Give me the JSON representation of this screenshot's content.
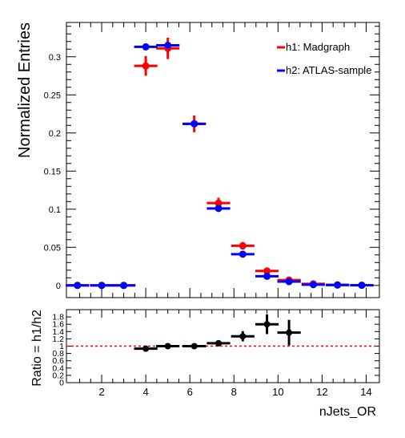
{
  "chart_data": [
    {
      "type": "scatter",
      "panel": "main",
      "ylabel": "Normalized Entries",
      "xlim": [
        0.4,
        14.6
      ],
      "ylim": [
        -0.016,
        0.345
      ],
      "yticks": [
        0,
        0.05,
        0.1,
        0.15,
        0.2,
        0.25,
        0.3
      ],
      "ytick_labels": [
        "0",
        "0.05",
        "0.1",
        "0.15",
        "0.2",
        "0.25",
        "0.3"
      ],
      "legend_position": "top-right",
      "series": [
        {
          "name": "h1: Madgraph",
          "color": "#ff0000",
          "x": [
            0.9,
            2.0,
            3.0,
            4.0,
            5.0,
            6.2,
            7.3,
            8.4,
            9.5,
            10.5,
            11.6,
            12.7,
            13.8
          ],
          "xerr": [
            0.53,
            0.53,
            0.53,
            0.53,
            0.53,
            0.53,
            0.53,
            0.53,
            0.53,
            0.53,
            0.53,
            0.53,
            0.53
          ],
          "values": [
            0.0,
            0.0,
            0.0,
            0.288,
            0.311,
            0.212,
            0.108,
            0.052,
            0.019,
            0.007,
            0.002,
            0.0008,
            0.0003
          ],
          "yerr": [
            0.0,
            0.0,
            0.0,
            0.013,
            0.014,
            0.011,
            0.007,
            0.005,
            0.003,
            0.002,
            0.001,
            0.0006,
            0.0003
          ]
        },
        {
          "name": "h2: ATLAS-sample",
          "color": "#0000ff",
          "x": [
            0.9,
            2.0,
            3.0,
            4.0,
            5.0,
            6.2,
            7.3,
            8.4,
            9.5,
            10.5,
            11.6,
            12.7,
            13.8
          ],
          "xerr": [
            0.53,
            0.53,
            0.53,
            0.53,
            0.53,
            0.53,
            0.53,
            0.53,
            0.53,
            0.53,
            0.53,
            0.53,
            0.53
          ],
          "values": [
            0.0,
            0.0,
            0.0,
            0.313,
            0.315,
            0.212,
            0.101,
            0.041,
            0.012,
            0.005,
            0.001,
            0.0005,
            0.0002
          ],
          "yerr": [
            0.0,
            0.0,
            0.0,
            0.0,
            0.0,
            0.0,
            0.0,
            0.0,
            0.0,
            0.0,
            0.0,
            0.0,
            0.0
          ]
        }
      ]
    },
    {
      "type": "scatter",
      "panel": "ratio",
      "xlabel": "nJets_OR",
      "ylabel": "Ratio = h1/h2",
      "xlim": [
        0.4,
        14.6
      ],
      "ylim": [
        0,
        2.0
      ],
      "reference_line": 1.0,
      "xticks": [
        2,
        4,
        6,
        8,
        10,
        12,
        14
      ],
      "xtick_labels": [
        "2",
        "4",
        "6",
        "8",
        "10",
        "12",
        "14"
      ],
      "yticks": [
        0,
        0.2,
        0.4,
        0.6,
        0.8,
        1,
        1.2,
        1.4,
        1.6,
        1.8
      ],
      "ytick_labels": [
        "0",
        "0.2",
        "0.4",
        "0.6",
        "0.8",
        "1",
        "1.2",
        "1.4",
        "1.6",
        "1.8"
      ],
      "series": [
        {
          "name": "h1/h2",
          "color": "#000000",
          "x": [
            4.0,
            5.0,
            6.2,
            7.3,
            8.4,
            9.5,
            10.5
          ],
          "xerr": [
            0.53,
            0.53,
            0.53,
            0.53,
            0.53,
            0.53,
            0.53
          ],
          "values": [
            0.93,
            1.0,
            1.0,
            1.08,
            1.27,
            1.6,
            1.37
          ],
          "yerr": [
            0.04,
            0.04,
            0.04,
            0.06,
            0.14,
            0.27,
            0.35
          ]
        }
      ]
    }
  ]
}
